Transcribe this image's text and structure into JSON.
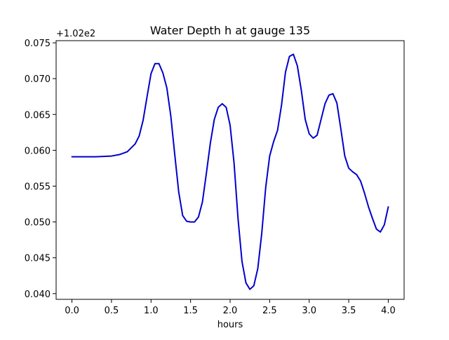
{
  "chart_data": {
    "type": "line",
    "title": "Water Depth h at gauge 135",
    "xlabel": "hours",
    "ylabel": "",
    "y_offset_label": "+1.02e2",
    "y_offset": 102,
    "xlim": [
      -0.2,
      4.2
    ],
    "ylim": [
      0.0392,
      0.0753
    ],
    "x_ticks": [
      0.0,
      0.5,
      1.0,
      1.5,
      2.0,
      2.5,
      3.0,
      3.5,
      4.0
    ],
    "x_tick_labels": [
      "0.0",
      "0.5",
      "1.0",
      "1.5",
      "2.0",
      "2.5",
      "3.0",
      "3.5",
      "4.0"
    ],
    "y_ticks": [
      0.04,
      0.045,
      0.05,
      0.055,
      0.06,
      0.065,
      0.07,
      0.075
    ],
    "y_tick_labels": [
      "0.040",
      "0.045",
      "0.050",
      "0.055",
      "0.060",
      "0.065",
      "0.070",
      "0.075"
    ],
    "grid": false,
    "series": [
      {
        "color": "#0000cc",
        "x": [
          0.0,
          0.1,
          0.2,
          0.3,
          0.4,
          0.5,
          0.6,
          0.7,
          0.8,
          0.85,
          0.9,
          0.95,
          1.0,
          1.05,
          1.1,
          1.15,
          1.2,
          1.25,
          1.3,
          1.35,
          1.4,
          1.45,
          1.5,
          1.55,
          1.6,
          1.65,
          1.7,
          1.75,
          1.8,
          1.85,
          1.9,
          1.95,
          2.0,
          2.05,
          2.1,
          2.15,
          2.2,
          2.25,
          2.3,
          2.35,
          2.4,
          2.45,
          2.5,
          2.55,
          2.6,
          2.65,
          2.7,
          2.75,
          2.8,
          2.85,
          2.9,
          2.95,
          3.0,
          3.05,
          3.1,
          3.15,
          3.2,
          3.25,
          3.3,
          3.35,
          3.4,
          3.45,
          3.5,
          3.55,
          3.6,
          3.65,
          3.7,
          3.75,
          3.8,
          3.85,
          3.9,
          3.95,
          4.0
        ],
        "y": [
          0.0591,
          0.0591,
          0.0591,
          0.0591,
          0.05915,
          0.0592,
          0.0594,
          0.0598,
          0.0609,
          0.062,
          0.0642,
          0.0675,
          0.0707,
          0.0721,
          0.0721,
          0.0708,
          0.0687,
          0.0648,
          0.0594,
          0.0542,
          0.0509,
          0.0501,
          0.05,
          0.05,
          0.0507,
          0.0528,
          0.0568,
          0.061,
          0.0643,
          0.066,
          0.0665,
          0.066,
          0.0635,
          0.0582,
          0.0505,
          0.0445,
          0.0415,
          0.0406,
          0.0411,
          0.0435,
          0.0484,
          0.0548,
          0.0592,
          0.0612,
          0.0628,
          0.0663,
          0.0709,
          0.0731,
          0.0734,
          0.0718,
          0.0684,
          0.0643,
          0.0623,
          0.0617,
          0.0621,
          0.0643,
          0.0665,
          0.0677,
          0.0679,
          0.0666,
          0.063,
          0.0592,
          0.0575,
          0.057,
          0.0566,
          0.0557,
          0.054,
          0.0521,
          0.0505,
          0.049,
          0.0486,
          0.0496,
          0.0521
        ]
      }
    ]
  }
}
